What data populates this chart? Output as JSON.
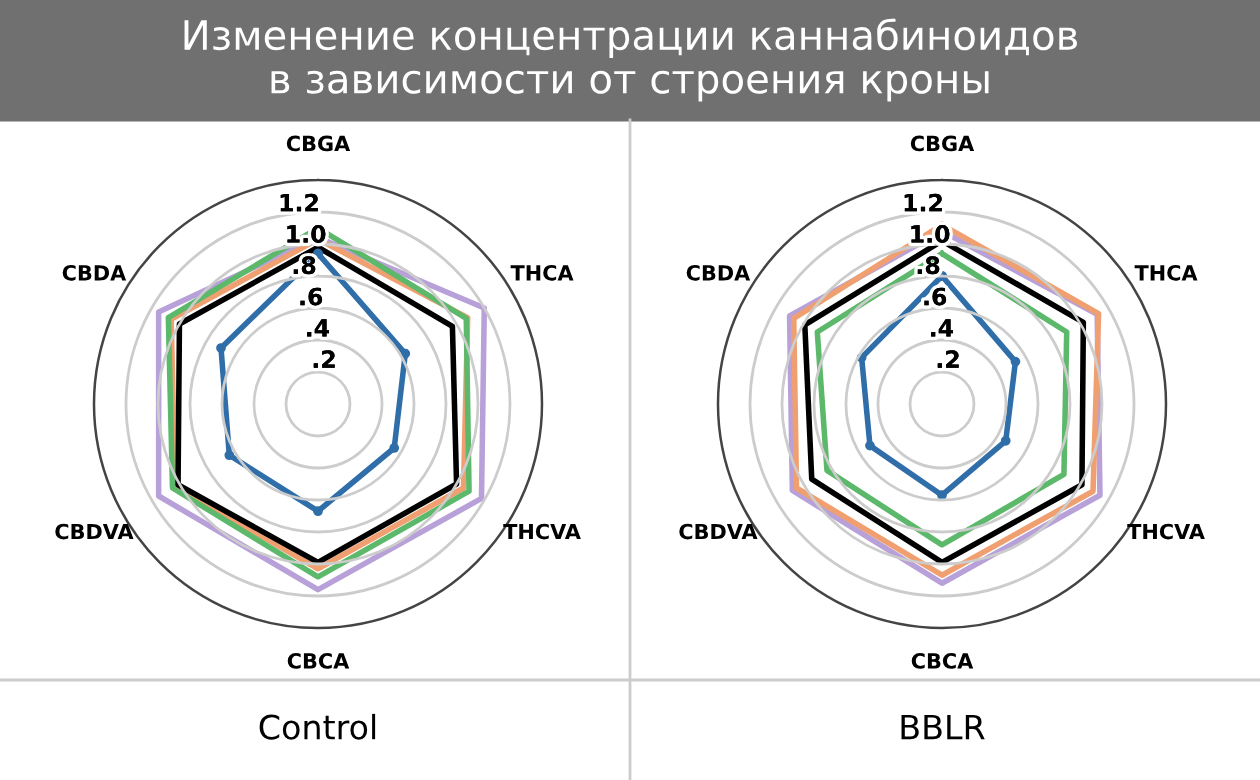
{
  "chart_data": [
    {
      "type": "other",
      "title": "Изменение концентрации каннабиноидов\nв зависимости от строения кроны"
    },
    {
      "type": "radar",
      "title": "Control",
      "categories": [
        "CBGA",
        "THCA",
        "THCVA",
        "CBCA",
        "CBDVA",
        "CBDA"
      ],
      "ylim": [
        0,
        1.4
      ],
      "yticks": [
        {
          "value": 0.2,
          "label": ".2"
        },
        {
          "value": 0.4,
          "label": ".4"
        },
        {
          "value": 0.6,
          "label": ".6"
        },
        {
          "value": 0.8,
          "label": ".8"
        },
        {
          "value": 1.0,
          "label": "1.0"
        },
        {
          "value": 1.2,
          "label": "1.2"
        }
      ],
      "grid": "y",
      "legend": false,
      "series": [
        {
          "color": "#b8a0d8",
          "values": [
            1.04,
            1.2,
            1.18,
            1.16,
            1.15,
            1.15
          ]
        },
        {
          "color": "#f0a070",
          "values": [
            1.03,
            1.08,
            1.05,
            1.03,
            1.03,
            1.06
          ]
        },
        {
          "color": "#5cb86a",
          "values": [
            1.1,
            1.07,
            1.09,
            1.08,
            1.05,
            1.08
          ]
        },
        {
          "color": "#000000",
          "values": [
            0.98,
            0.97,
            1.0,
            0.99,
            1.01,
            1.0
          ]
        },
        {
          "color": "#2f6ea8",
          "values": [
            0.94,
            0.63,
            0.55,
            0.67,
            0.64,
            0.7
          ]
        }
      ]
    },
    {
      "type": "radar",
      "title": "BBLR",
      "categories": [
        "CBGA",
        "THCA",
        "THCVA",
        "CBCA",
        "CBDVA",
        "CBDA"
      ],
      "ylim": [
        0,
        1.4
      ],
      "yticks": [
        {
          "value": 0.2,
          "label": ".2"
        },
        {
          "value": 0.4,
          "label": ".4"
        },
        {
          "value": 0.6,
          "label": ".6"
        },
        {
          "value": 0.8,
          "label": ".8"
        },
        {
          "value": 1.0,
          "label": "1.0"
        },
        {
          "value": 1.2,
          "label": "1.2"
        }
      ],
      "grid": "y",
      "legend": false,
      "series": [
        {
          "color": "#b8a0d8",
          "values": [
            1.08,
            1.12,
            1.14,
            1.12,
            1.08,
            1.1
          ]
        },
        {
          "color": "#f0a070",
          "values": [
            1.12,
            1.13,
            1.09,
            1.07,
            1.05,
            1.07
          ]
        },
        {
          "color": "#5cb86a",
          "values": [
            0.94,
            0.9,
            0.88,
            0.88,
            0.83,
            0.9
          ]
        },
        {
          "color": "#000000",
          "values": [
            1.02,
            1.02,
            1.01,
            0.99,
            0.94,
            0.99
          ]
        },
        {
          "color": "#2f6ea8",
          "values": [
            0.8,
            0.53,
            0.46,
            0.57,
            0.52,
            0.58
          ]
        }
      ]
    }
  ]
}
